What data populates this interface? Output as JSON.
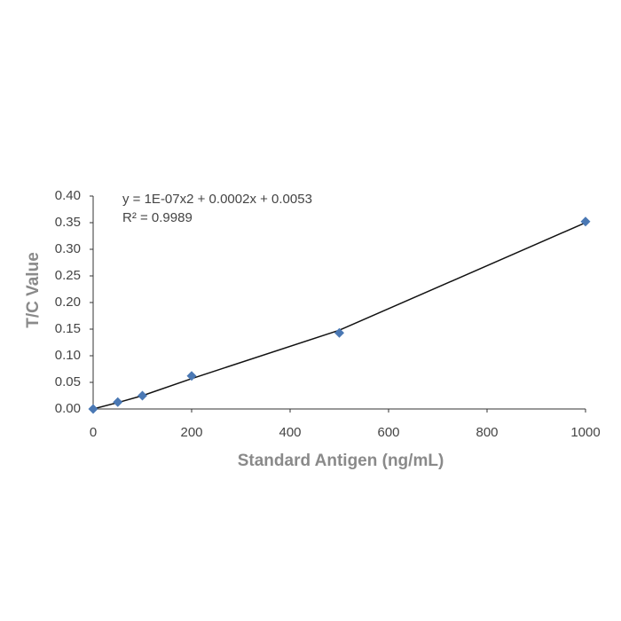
{
  "chart_data": {
    "type": "scatter",
    "x_label": "Standard Antigen (ng/mL)",
    "y_label": "T/C Value",
    "annotations": [
      "y = 1E-07x2 + 0.0002x + 0.0053",
      "R² = 0.9989"
    ],
    "x": [
      0,
      50,
      100,
      200,
      500,
      1000
    ],
    "series": [
      {
        "color": "#4a78b4",
        "values": [
          0.0,
          0.013,
          0.025,
          0.062,
          0.143,
          0.352
        ]
      }
    ],
    "trendline": {
      "color": "#111111",
      "values": [
        0.0,
        0.012,
        0.025,
        0.057,
        0.148,
        0.35
      ]
    },
    "xlim": [
      0,
      1000
    ],
    "ylim": [
      0,
      0.4
    ],
    "xticks": [
      0,
      200,
      400,
      600,
      800,
      1000
    ],
    "yticks": [
      {
        "value": 0,
        "label": "0.00"
      },
      {
        "value": 0.05,
        "label": "0.05"
      },
      {
        "value": 0.1,
        "label": "0.10"
      },
      {
        "value": 0.15,
        "label": "0.15"
      },
      {
        "value": 0.2,
        "label": "0.20"
      },
      {
        "value": 0.25,
        "label": "0.25"
      },
      {
        "value": 0.3,
        "label": "0.30"
      },
      {
        "value": 0.35,
        "label": "0.35"
      },
      {
        "value": 0.4,
        "label": "0.40"
      }
    ],
    "grid": false
  }
}
